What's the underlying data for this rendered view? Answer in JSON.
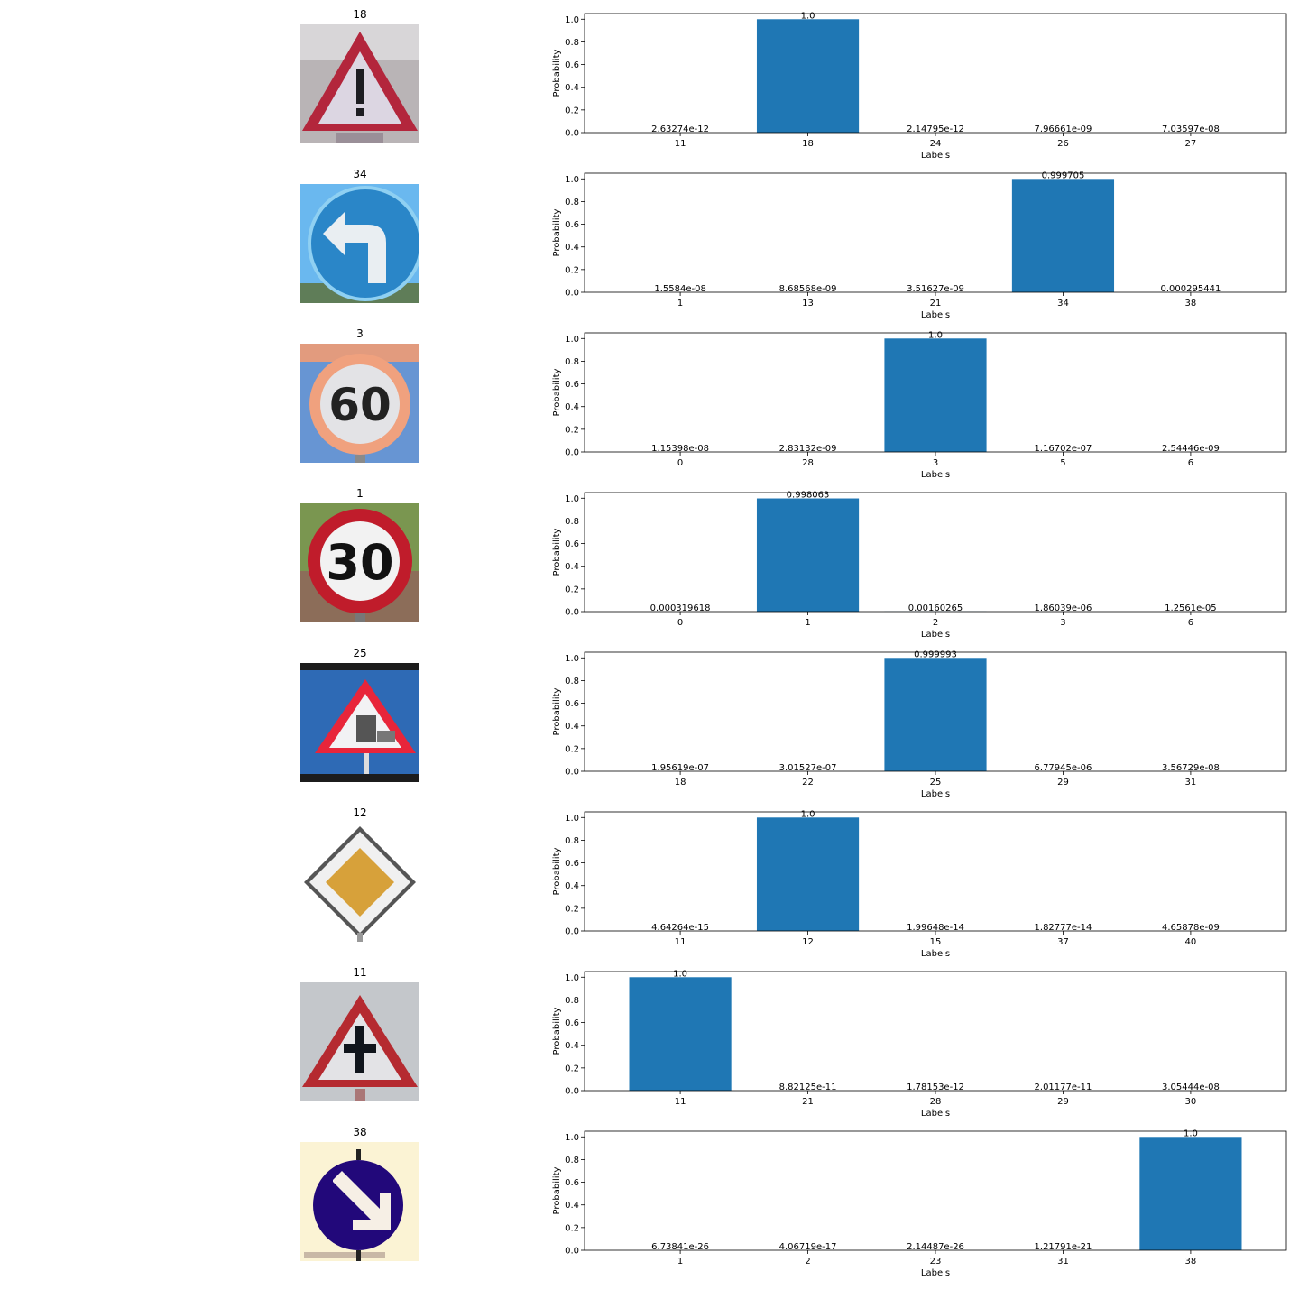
{
  "colors": {
    "bar": "#1f77b4",
    "axis": "#000000"
  },
  "chart_data": [
    {
      "type": "bar",
      "title": "18",
      "sign_icon": "general-caution-sign",
      "xlabel": "Labels",
      "ylabel": "Probability",
      "ylim": [
        0,
        1.05
      ],
      "yticks": [
        "0.0",
        "0.2",
        "0.4",
        "0.6",
        "0.8",
        "1.0"
      ],
      "categories": [
        "11",
        "18",
        "24",
        "26",
        "27"
      ],
      "values": [
        2.63274e-12,
        1.0,
        2.14795e-12,
        7.96661e-09,
        7.03597e-08
      ],
      "value_labels": [
        "2.63274e-12",
        "1.0",
        "2.14795e-12",
        "7.96661e-09",
        "7.03597e-08"
      ]
    },
    {
      "type": "bar",
      "title": "34",
      "sign_icon": "turn-left-ahead-sign",
      "xlabel": "Labels",
      "ylabel": "Probability",
      "ylim": [
        0,
        1.05
      ],
      "yticks": [
        "0.0",
        "0.2",
        "0.4",
        "0.6",
        "0.8",
        "1.0"
      ],
      "categories": [
        "1",
        "13",
        "21",
        "34",
        "38"
      ],
      "values": [
        1.5584e-08,
        8.68568e-09,
        3.51627e-09,
        0.999705,
        0.000295441
      ],
      "value_labels": [
        "1.5584e-08",
        "8.68568e-09",
        "3.51627e-09",
        "0.999705",
        "0.000295441"
      ]
    },
    {
      "type": "bar",
      "title": "3",
      "sign_icon": "speed-limit-60-sign",
      "xlabel": "Labels",
      "ylabel": "Probability",
      "ylim": [
        0,
        1.05
      ],
      "yticks": [
        "0.0",
        "0.2",
        "0.4",
        "0.6",
        "0.8",
        "1.0"
      ],
      "categories": [
        "0",
        "28",
        "3",
        "5",
        "6"
      ],
      "values": [
        1.15398e-08,
        2.83132e-09,
        1.0,
        1.16702e-07,
        2.54446e-09
      ],
      "value_labels": [
        "1.15398e-08",
        "2.83132e-09",
        "1.0",
        "1.16702e-07",
        "2.54446e-09"
      ]
    },
    {
      "type": "bar",
      "title": "1",
      "sign_icon": "speed-limit-30-sign",
      "xlabel": "Labels",
      "ylabel": "Probability",
      "ylim": [
        0,
        1.05
      ],
      "yticks": [
        "0.0",
        "0.2",
        "0.4",
        "0.6",
        "0.8",
        "1.0"
      ],
      "categories": [
        "0",
        "1",
        "2",
        "3",
        "6"
      ],
      "values": [
        0.000319618,
        0.998063,
        0.00160265,
        1.86039e-06,
        1.2561e-05
      ],
      "value_labels": [
        "0.000319618",
        "0.998063",
        "0.00160265",
        "1.86039e-06",
        "1.2561e-05"
      ]
    },
    {
      "type": "bar",
      "title": "25",
      "sign_icon": "road-work-sign",
      "xlabel": "Labels",
      "ylabel": "Probability",
      "ylim": [
        0,
        1.05
      ],
      "yticks": [
        "0.0",
        "0.2",
        "0.4",
        "0.6",
        "0.8",
        "1.0"
      ],
      "categories": [
        "18",
        "22",
        "25",
        "29",
        "31"
      ],
      "values": [
        1.95619e-07,
        3.01527e-07,
        0.999993,
        6.77945e-06,
        3.56729e-08
      ],
      "value_labels": [
        "1.95619e-07",
        "3.01527e-07",
        "0.999993",
        "6.77945e-06",
        "3.56729e-08"
      ]
    },
    {
      "type": "bar",
      "title": "12",
      "sign_icon": "priority-road-sign",
      "xlabel": "Labels",
      "ylabel": "Probability",
      "ylim": [
        0,
        1.05
      ],
      "yticks": [
        "0.0",
        "0.2",
        "0.4",
        "0.6",
        "0.8",
        "1.0"
      ],
      "categories": [
        "11",
        "12",
        "15",
        "37",
        "40"
      ],
      "values": [
        4.64264e-15,
        1.0,
        1.99648e-14,
        1.82777e-14,
        4.65878e-09
      ],
      "value_labels": [
        "4.64264e-15",
        "1.0",
        "1.99648e-14",
        "1.82777e-14",
        "4.65878e-09"
      ]
    },
    {
      "type": "bar",
      "title": "11",
      "sign_icon": "right-of-way-sign",
      "xlabel": "Labels",
      "ylabel": "Probability",
      "ylim": [
        0,
        1.05
      ],
      "yticks": [
        "0.0",
        "0.2",
        "0.4",
        "0.6",
        "0.8",
        "1.0"
      ],
      "categories": [
        "11",
        "21",
        "28",
        "29",
        "30"
      ],
      "values": [
        1.0,
        8.82125e-11,
        1.78153e-12,
        2.01177e-11,
        3.05444e-08
      ],
      "value_labels": [
        "1.0",
        "8.82125e-11",
        "1.78153e-12",
        "2.01177e-11",
        "3.05444e-08"
      ]
    },
    {
      "type": "bar",
      "title": "38",
      "sign_icon": "keep-right-sign",
      "xlabel": "Labels",
      "ylabel": "Probability",
      "ylim": [
        0,
        1.05
      ],
      "yticks": [
        "0.0",
        "0.2",
        "0.4",
        "0.6",
        "0.8",
        "1.0"
      ],
      "categories": [
        "1",
        "2",
        "23",
        "31",
        "38"
      ],
      "values": [
        6.73841e-26,
        4.06719e-17,
        2.14487e-26,
        1.21791e-21,
        1.0
      ],
      "value_labels": [
        "6.73841e-26",
        "4.06719e-17",
        "2.14487e-26",
        "1.21791e-21",
        "1.0"
      ]
    }
  ]
}
